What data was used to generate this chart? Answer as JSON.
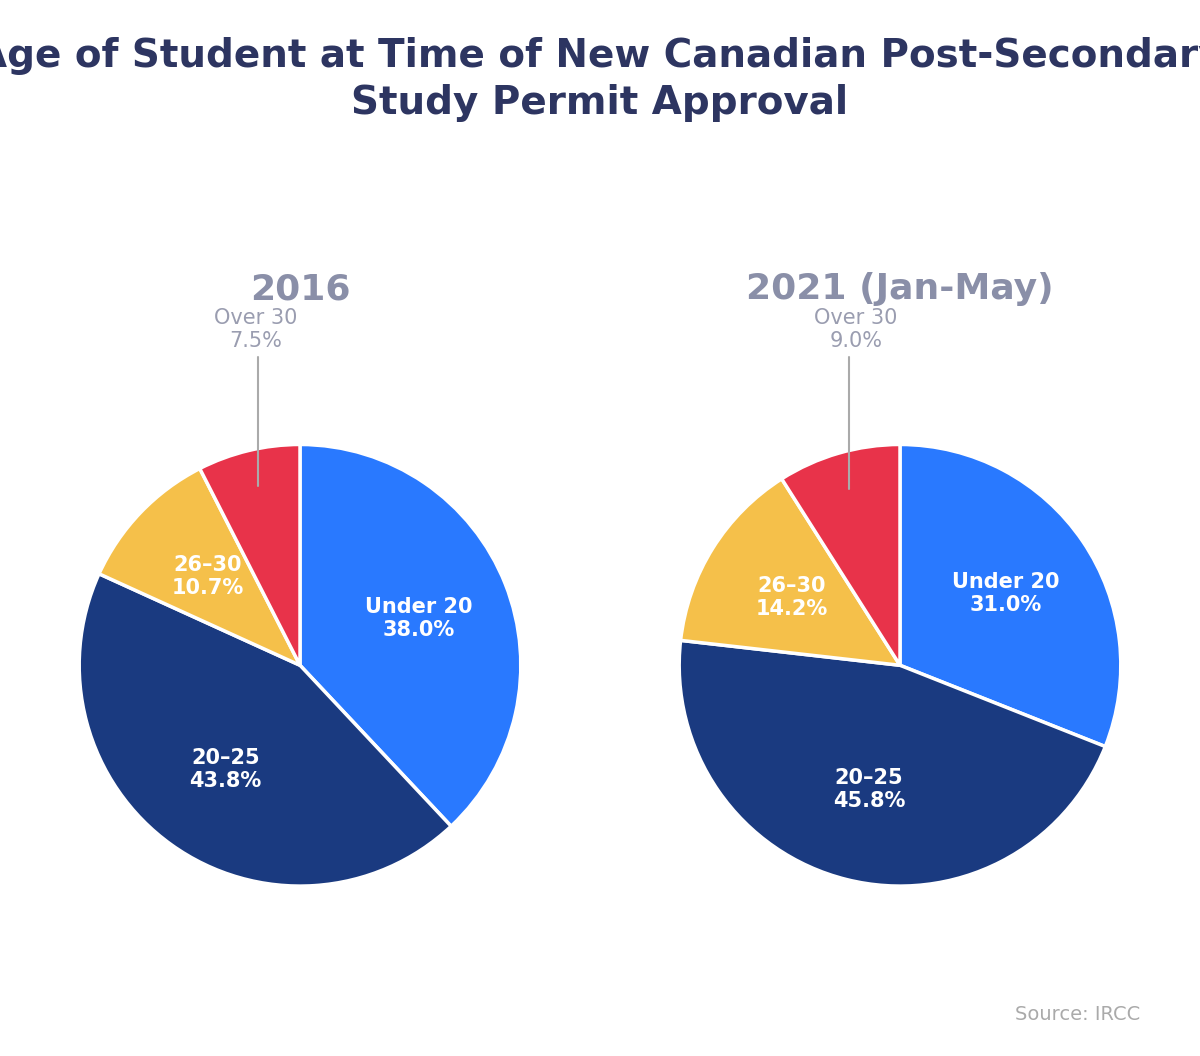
{
  "title": "Age of Student at Time of New Canadian Post-Secondary\nStudy Permit Approval",
  "title_color": "#2d3561",
  "title_fontsize": 28,
  "subtitle_2016": "2016",
  "subtitle_2021": "2021 (Jan-May)",
  "subtitle_fontsize": 26,
  "subtitle_color": "#8a8fa8",
  "source_text": "Source: IRCC",
  "source_color": "#aaaaaa",
  "source_fontsize": 14,
  "pie1_labels": [
    "Under 20",
    "20–25",
    "26–30",
    "Over 30"
  ],
  "pie1_values": [
    38.0,
    43.8,
    10.7,
    7.5
  ],
  "pie1_colors": [
    "#2979FF",
    "#1a3a80",
    "#F5C04A",
    "#E8334A"
  ],
  "pie2_labels": [
    "Under 20",
    "20–25",
    "26–30",
    "Over 30"
  ],
  "pie2_values": [
    31.0,
    45.8,
    14.2,
    9.0
  ],
  "pie2_colors": [
    "#2979FF",
    "#1a3a80",
    "#F5C04A",
    "#E8334A"
  ],
  "label_color_inside": "#ffffff",
  "label_color_outside": "#9a9db0",
  "label_fontsize": 15,
  "wedge_edgecolor": "#ffffff",
  "wedge_linewidth": 2.5
}
